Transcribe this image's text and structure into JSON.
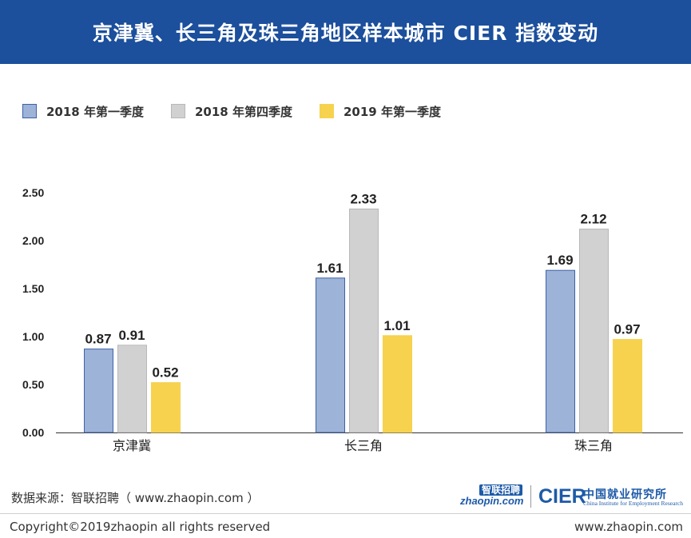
{
  "header": {
    "title": "京津冀、长三角及珠三角地区样本城市 CIER 指数变动"
  },
  "colors": {
    "header_bg": "#1c4f9c",
    "series": [
      "#9db3d8",
      "#d1d1d1",
      "#f6d24f"
    ],
    "series_border": [
      "#3f62a6",
      "#b8b8b8",
      "#f6d24f"
    ]
  },
  "chart_data": {
    "type": "bar",
    "categories": [
      "京津冀",
      "长三角",
      "珠三角"
    ],
    "series": [
      {
        "name": "2018 年第一季度",
        "values": [
          0.87,
          1.61,
          1.69
        ]
      },
      {
        "name": "2018 年第四季度",
        "values": [
          0.91,
          2.33,
          2.12
        ]
      },
      {
        "name": "2019 年第一季度",
        "values": [
          0.52,
          1.01,
          0.97
        ]
      }
    ],
    "yticks": [
      "0.00",
      "0.50",
      "1.00",
      "1.50",
      "2.00",
      "2.50"
    ],
    "ylim": [
      0,
      2.5
    ],
    "grid": false,
    "legend": "top-left",
    "data_labels": true
  },
  "footer": {
    "source": "数据来源：智联招聘（ www.zhaopin.com ）",
    "copyright": "Copyright©2019zhaopin all rights reserved",
    "site": "www.zhaopin.com",
    "logo_zhaopin_cn": "智联招聘",
    "logo_zhaopin_en": "zhaopin.com",
    "logo_cier_abbr": "CIER",
    "logo_cier_cn": "中国就业研究所",
    "logo_cier_en": "China Institute for Employment Research"
  }
}
